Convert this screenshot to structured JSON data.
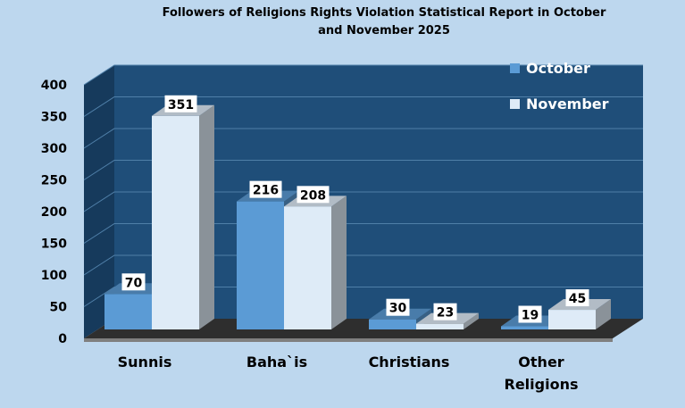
{
  "chart_data": {
    "type": "bar",
    "title": "Followers of Religions Rights Violation Statistical Report in October and November 2025",
    "title_lines": [
      "Followers of Religions Rights Violation Statistical Report in October",
      "and November 2025"
    ],
    "categories": [
      "Sunnis",
      "Baha`is",
      "Christians",
      "Other Religions"
    ],
    "category_lines": [
      [
        "Sunnis"
      ],
      [
        "Baha`is"
      ],
      [
        "Christians"
      ],
      [
        "Other",
        "Religions"
      ]
    ],
    "series": [
      {
        "name": "October",
        "values": [
          70,
          216,
          30,
          19
        ],
        "color": "#5b9bd5"
      },
      {
        "name": "November",
        "values": [
          351,
          208,
          23,
          45
        ],
        "color": "#deebf7"
      }
    ],
    "ylim": [
      0,
      400
    ],
    "yticks": [
      0,
      50,
      100,
      150,
      200,
      250,
      300,
      350,
      400
    ],
    "grid": true,
    "legend_position": "top-right",
    "projection": "3d-column"
  },
  "colors": {
    "background": "#bdd7ee",
    "wall": "#1f4e79",
    "wall_side": "#163a5c",
    "floor": "#2e2e2e",
    "floor_front": "#7f7f7f",
    "gridline": "#4f7fa8"
  }
}
